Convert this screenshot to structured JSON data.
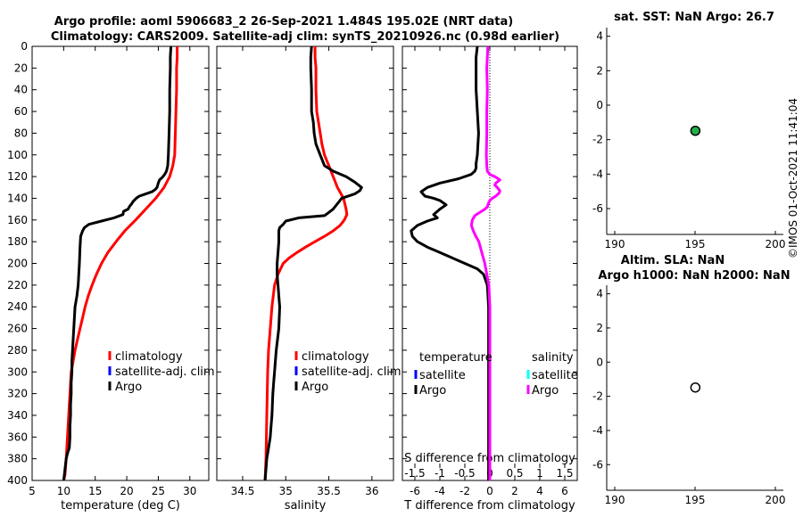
{
  "title_line1": "Argo profile: aoml 5906683_2 26-Sep-2021 1.484S 195.02E (NRT data)",
  "title_line2": "Climatology: CARS2009. Satellite-adj clim: synTS_20210926.nc (0.98d earlier)",
  "timestamp": "©IMOS 01-Oct-2021 11:41:04",
  "colors": {
    "climatology": "#ff0000",
    "satellite": "#0000ff",
    "argo": "#000000",
    "sal_satellite": "#00ffff",
    "sal_argo": "#ff00ff",
    "marker_fill": "#22b14c"
  },
  "chart_data": [
    {
      "id": "temperature",
      "type": "line",
      "xlabel": "temperature (deg C)",
      "xlim": [
        5,
        33
      ],
      "xticks": [
        5,
        10,
        15,
        20,
        25,
        30
      ],
      "ylim": [
        0,
        400
      ],
      "yticks": [
        0,
        20,
        40,
        60,
        80,
        100,
        120,
        140,
        160,
        180,
        200,
        220,
        240,
        260,
        280,
        300,
        320,
        340,
        360,
        380,
        400
      ],
      "legend": [
        "climatology",
        "satellite-adj. clim",
        "Argo"
      ],
      "series": [
        {
          "name": "climatology",
          "color": "#ff0000",
          "x": [
            28.0,
            28.0,
            27.9,
            27.9,
            27.8,
            27.7,
            27.6,
            27.3,
            26.8,
            25.9,
            24.6,
            23.0,
            21.4,
            19.7,
            18.3,
            17.0,
            16.0,
            15.2,
            14.5,
            13.9,
            13.4,
            13.0,
            12.6,
            12.2,
            11.8,
            11.5,
            11.2,
            11.0,
            10.8,
            10.6,
            10.4,
            10.2,
            10.0
          ],
          "y": [
            0,
            10,
            20,
            40,
            60,
            80,
            100,
            110,
            120,
            130,
            140,
            150,
            160,
            170,
            180,
            190,
            200,
            210,
            220,
            230,
            240,
            250,
            260,
            270,
            280,
            290,
            300,
            320,
            340,
            360,
            380,
            395,
            400
          ]
        },
        {
          "name": "Argo",
          "color": "#000000",
          "x": [
            27.0,
            26.9,
            26.9,
            26.8,
            26.8,
            26.7,
            26.6,
            26.5,
            26.3,
            26.0,
            25.6,
            25.2,
            25.0,
            24.8,
            24.5,
            24.0,
            23.0,
            22.0,
            21.5,
            21.0,
            20.8,
            20.5,
            20.2,
            19.5,
            19.4,
            18.0,
            16.0,
            14.0,
            13.3,
            13.0,
            12.7,
            12.6,
            12.5,
            12.3,
            12.1,
            11.8,
            11.6,
            11.5,
            11.4,
            11.3,
            11.3,
            11.2,
            11.2,
            11.1,
            11.1,
            11.0,
            11.0,
            10.9,
            10.6,
            10.4,
            10.2,
            10.0
          ],
          "y": [
            0,
            10,
            20,
            40,
            60,
            80,
            100,
            110,
            115,
            118,
            121,
            123,
            126,
            130,
            132,
            134,
            136,
            138,
            140,
            143,
            145,
            147,
            150,
            152,
            155,
            158,
            161,
            164,
            167,
            170,
            175,
            185,
            200,
            220,
            230,
            240,
            260,
            270,
            280,
            290,
            300,
            310,
            320,
            330,
            340,
            350,
            360,
            370,
            375,
            380,
            390,
            400
          ]
        }
      ]
    },
    {
      "id": "salinity",
      "type": "line",
      "xlabel": "salinity",
      "xlim": [
        34.2,
        36.25
      ],
      "xticks": [
        34.5,
        35,
        35.5,
        36
      ],
      "ticklabels": [
        "34.5",
        "35",
        "35.5",
        "36"
      ],
      "ylim": [
        0,
        400
      ],
      "legend": [
        "climatology",
        "satellite-adj. clim",
        "Argo"
      ],
      "series": [
        {
          "name": "climatology",
          "color": "#ff0000",
          "x": [
            35.34,
            35.34,
            35.35,
            35.35,
            35.36,
            35.38,
            35.4,
            35.42,
            35.45,
            35.5,
            35.55,
            35.6,
            35.67,
            35.7,
            35.71,
            35.68,
            35.63,
            35.55,
            35.45,
            35.34,
            35.23,
            35.13,
            35.04,
            34.97,
            34.91,
            34.87,
            34.84,
            34.82,
            34.8,
            34.79,
            34.78,
            34.77,
            34.76
          ],
          "y": [
            0,
            10,
            20,
            40,
            60,
            70,
            80,
            90,
            100,
            110,
            120,
            130,
            140,
            150,
            155,
            160,
            165,
            170,
            175,
            180,
            185,
            190,
            195,
            200,
            210,
            220,
            240,
            260,
            280,
            300,
            340,
            380,
            400
          ]
        },
        {
          "name": "Argo",
          "color": "#000000",
          "x": [
            35.3,
            35.29,
            35.29,
            35.3,
            35.3,
            35.32,
            35.33,
            35.35,
            35.4,
            35.45,
            35.55,
            35.7,
            35.8,
            35.88,
            35.86,
            35.8,
            35.65,
            35.6,
            35.55,
            35.5,
            35.45,
            35.15,
            35.0,
            34.97,
            34.93,
            34.92,
            34.92,
            34.91,
            34.9,
            34.9,
            34.91,
            34.92,
            34.93,
            34.92,
            34.89,
            34.87,
            34.86,
            34.85,
            34.84,
            34.83,
            34.82,
            34.8,
            34.78,
            34.76
          ],
          "y": [
            0,
            10,
            20,
            40,
            60,
            70,
            80,
            90,
            100,
            110,
            115,
            120,
            125,
            130,
            133,
            136,
            140,
            145,
            150,
            153,
            156,
            158,
            161,
            164,
            167,
            170,
            180,
            190,
            200,
            210,
            220,
            230,
            240,
            260,
            280,
            300,
            310,
            320,
            340,
            350,
            360,
            370,
            380,
            400
          ]
        }
      ]
    },
    {
      "id": "differences",
      "type": "line",
      "xlabel": "T difference from climatology",
      "top_label": "S difference from climatology",
      "xlim": [
        -7,
        7
      ],
      "xticks": [
        -6,
        -4,
        -2,
        0,
        2,
        4,
        6
      ],
      "top_ticks": [
        -1.5,
        -1,
        -0.5,
        0,
        0.5,
        1,
        1.5
      ],
      "top_ticklabels": [
        "-1.5",
        "-1",
        "-0.5",
        "0",
        "0.5",
        "1",
        "1.5"
      ],
      "ylim": [
        0,
        400
      ],
      "legend_left_title": "temperature",
      "legend_right_title": "salinity",
      "legend_left": [
        "satellite",
        "Argo"
      ],
      "legend_right": [
        "satellite",
        "Argo"
      ],
      "series": [
        {
          "name": "T Argo",
          "color": "#000000",
          "x": [
            -1.0,
            -1.1,
            -1.1,
            -1.1,
            -1.0,
            -0.9,
            -1.0,
            -1.1,
            -1.1,
            -1.2,
            -1.5,
            -2.5,
            -4.0,
            -5.0,
            -5.5,
            -5.2,
            -4.5,
            -4.0,
            -3.5,
            -4.0,
            -4.5,
            -4.2,
            -5.0,
            -5.8,
            -6.3,
            -6.2,
            -5.8,
            -5.0,
            -4.0,
            -3.0,
            -2.0,
            -1.0,
            -0.5,
            -0.2,
            -0.1,
            -0.1,
            -0.1,
            -0.1,
            -0.1,
            -0.1,
            -0.1,
            -0.1,
            -0.1
          ],
          "y": [
            0,
            10,
            20,
            40,
            60,
            80,
            100,
            108,
            112,
            115,
            118,
            122,
            126,
            130,
            134,
            138,
            140,
            142,
            146,
            150,
            155,
            158,
            161,
            165,
            170,
            175,
            180,
            185,
            190,
            195,
            200,
            205,
            210,
            220,
            240,
            260,
            280,
            300,
            320,
            340,
            360,
            380,
            400
          ]
        },
        {
          "name": "S Argo",
          "color": "#ff00ff",
          "x": [
            -0.04,
            -0.05,
            -0.06,
            -0.05,
            -0.06,
            -0.06,
            -0.07,
            -0.06,
            -0.05,
            0.0,
            0.1,
            0.2,
            0.12,
            0.1,
            0.15,
            0.2,
            0.19,
            0.12,
            0.05,
            0.0,
            -0.03,
            -0.05,
            -0.1,
            -0.2,
            -0.3,
            -0.35,
            -0.37,
            -0.33,
            -0.28,
            -0.22,
            -0.16,
            -0.1,
            -0.06,
            -0.02,
            0.0,
            0.0,
            0.0,
            0.0,
            0.0,
            0.0,
            0.0,
            0.0,
            0.0,
            0.0
          ],
          "y": [
            0,
            10,
            20,
            40,
            60,
            80,
            100,
            110,
            115,
            118,
            120,
            123,
            126,
            128,
            130,
            133,
            135,
            138,
            140,
            142,
            145,
            148,
            150,
            153,
            156,
            160,
            165,
            170,
            175,
            180,
            190,
            200,
            210,
            220,
            240,
            260,
            280,
            300,
            320,
            340,
            360,
            380,
            390,
            400
          ]
        }
      ]
    },
    {
      "id": "sst",
      "type": "scatter",
      "title": "sat. SST: NaN Argo: 26.7",
      "xlim": [
        189.5,
        200.5
      ],
      "xticks": [
        190,
        195,
        200
      ],
      "ylim": [
        -7.5,
        4.5
      ],
      "yticks": [
        4,
        2,
        0,
        -2,
        -4,
        -6
      ],
      "points": [
        {
          "x": 195.02,
          "y": -1.484
        }
      ],
      "marker_fill": "#22b14c"
    },
    {
      "id": "sla",
      "type": "scatter",
      "title_line1": "Altim. SLA: NaN",
      "title_line2": "Argo h1000: NaN h2000: NaN",
      "xlim": [
        189.5,
        200.5
      ],
      "xticks": [
        190,
        195,
        200
      ],
      "ylim": [
        -7.5,
        4.5
      ],
      "yticks": [
        4,
        2,
        0,
        -2,
        -4,
        -6
      ],
      "points": [
        {
          "x": 195.02,
          "y": -1.484
        }
      ],
      "marker_fill": "none"
    }
  ]
}
